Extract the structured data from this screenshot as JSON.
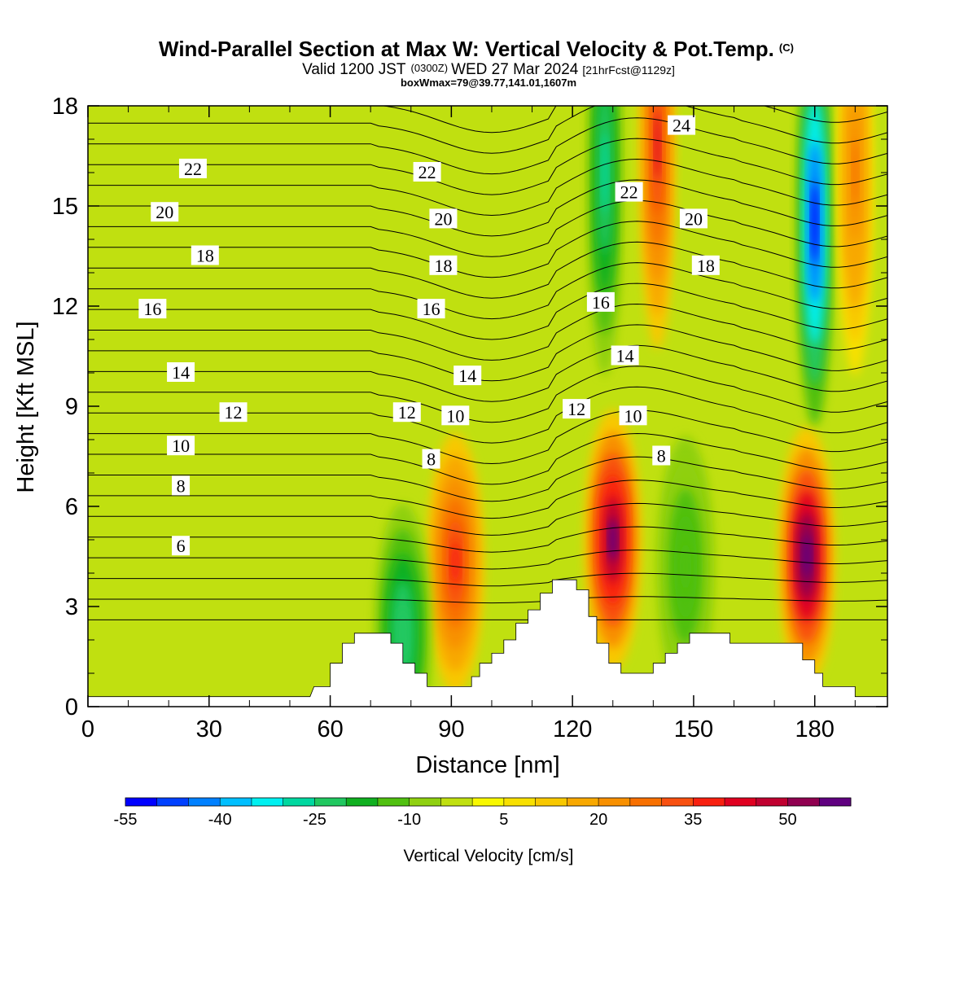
{
  "title": {
    "main": "Wind-Parallel Section at Max W: Vertical Velocity & Pot.Temp.",
    "copyright": "(C)",
    "valid_prefix": "Valid 1200 JST",
    "valid_zulu": "(0300Z)",
    "valid_date": "WED 27 Mar 2024",
    "forecast": "[21hrFcst@1129z]",
    "box_info": "boxWmax=79@39.77,141.01,1607m"
  },
  "chart_data": {
    "type": "heatmap",
    "xlabel": "Distance [nm]",
    "ylabel": "Height [Kft MSL]",
    "xlim": [
      0,
      198
    ],
    "ylim": [
      0,
      18
    ],
    "x_ticks": [
      0,
      30,
      60,
      90,
      120,
      150,
      180
    ],
    "y_ticks": [
      0,
      3,
      6,
      9,
      12,
      15,
      18
    ],
    "colorbar": {
      "label": "Vertical Velocity [cm/s]",
      "levels": [
        -55,
        -50,
        -45,
        -40,
        -35,
        -30,
        -25,
        -20,
        -15,
        -10,
        -5,
        0,
        5,
        10,
        15,
        20,
        25,
        30,
        35,
        40,
        45,
        50,
        55,
        60
      ],
      "tick_labels": [
        "-55",
        "-40",
        "-25",
        "-10",
        "5",
        "20",
        "35",
        "50"
      ],
      "colors": [
        "#0000ff",
        "#0040ff",
        "#0080ff",
        "#00bfff",
        "#00f0f0",
        "#00d8a0",
        "#20c860",
        "#10b020",
        "#50c010",
        "#8fd010",
        "#c0e010",
        "#f8f800",
        "#f8e000",
        "#f8c800",
        "#f8a800",
        "#f89000",
        "#f87000",
        "#f85010",
        "#f82010",
        "#e00020",
        "#c00030",
        "#900050",
        "#600080"
      ]
    },
    "vertical_velocity_features": [
      {
        "x": 91,
        "y": 4.3,
        "value": 35,
        "sign": "updraft"
      },
      {
        "x": 130,
        "y": 5.0,
        "value": 55,
        "sign": "updraft"
      },
      {
        "x": 178,
        "y": 4.5,
        "value": 60,
        "sign": "updraft"
      },
      {
        "x": 78,
        "y": 2.2,
        "value": -25,
        "sign": "downdraft"
      },
      {
        "x": 148,
        "y": 4.2,
        "value": -15,
        "sign": "downdraft"
      },
      {
        "x": 180,
        "y": 14.5,
        "value": -55,
        "sign": "downdraft"
      },
      {
        "x": 128,
        "y": 16.0,
        "value": -30,
        "sign": "downdraft"
      },
      {
        "x": 141,
        "y": 16.8,
        "value": 40,
        "sign": "updraft"
      },
      {
        "x": 190,
        "y": 16.0,
        "value": 25,
        "sign": "updraft"
      }
    ],
    "terrain_profile": [
      [
        0,
        0.3
      ],
      [
        55,
        0.3
      ],
      [
        56,
        0.6
      ],
      [
        60,
        0.6
      ],
      [
        60,
        1.3
      ],
      [
        63,
        1.3
      ],
      [
        63,
        1.9
      ],
      [
        66,
        1.9
      ],
      [
        66,
        2.2
      ],
      [
        75,
        2.2
      ],
      [
        75,
        1.9
      ],
      [
        78,
        1.9
      ],
      [
        78,
        1.3
      ],
      [
        81,
        1.3
      ],
      [
        81,
        1.0
      ],
      [
        84,
        1.0
      ],
      [
        84,
        0.6
      ],
      [
        95,
        0.6
      ],
      [
        95,
        0.9
      ],
      [
        97,
        0.9
      ],
      [
        97,
        1.3
      ],
      [
        100,
        1.3
      ],
      [
        100,
        1.6
      ],
      [
        103,
        1.6
      ],
      [
        103,
        2.0
      ],
      [
        106,
        2.0
      ],
      [
        106,
        2.5
      ],
      [
        109,
        2.5
      ],
      [
        109,
        2.9
      ],
      [
        112,
        2.9
      ],
      [
        112,
        3.4
      ],
      [
        115,
        3.4
      ],
      [
        115,
        3.8
      ],
      [
        121,
        3.8
      ],
      [
        121,
        3.5
      ],
      [
        124,
        3.5
      ],
      [
        124,
        2.7
      ],
      [
        126,
        2.7
      ],
      [
        126,
        1.9
      ],
      [
        129,
        1.9
      ],
      [
        129,
        1.3
      ],
      [
        132,
        1.3
      ],
      [
        132,
        1.0
      ],
      [
        140,
        1.0
      ],
      [
        140,
        1.3
      ],
      [
        143,
        1.3
      ],
      [
        143,
        1.6
      ],
      [
        146,
        1.6
      ],
      [
        146,
        1.9
      ],
      [
        149,
        1.9
      ],
      [
        149,
        2.2
      ],
      [
        159,
        2.2
      ],
      [
        159,
        1.9
      ],
      [
        177,
        1.9
      ],
      [
        177,
        1.4
      ],
      [
        180,
        1.4
      ],
      [
        180,
        1.0
      ],
      [
        182,
        1.0
      ],
      [
        182,
        0.6
      ],
      [
        190,
        0.6
      ],
      [
        190,
        0.3
      ],
      [
        198,
        0.3
      ]
    ],
    "potential_temperature_contours": {
      "unit": "C",
      "labels": [
        {
          "text": "24",
          "x": 147,
          "y": 17.4
        },
        {
          "text": "22",
          "x": 26,
          "y": 16.1
        },
        {
          "text": "22",
          "x": 84,
          "y": 16.0
        },
        {
          "text": "22",
          "x": 134,
          "y": 15.4
        },
        {
          "text": "20",
          "x": 19,
          "y": 14.8
        },
        {
          "text": "20",
          "x": 88,
          "y": 14.6
        },
        {
          "text": "20",
          "x": 150,
          "y": 14.6
        },
        {
          "text": "18",
          "x": 29,
          "y": 13.5
        },
        {
          "text": "18",
          "x": 88,
          "y": 13.2
        },
        {
          "text": "18",
          "x": 153,
          "y": 13.2
        },
        {
          "text": "16",
          "x": 16,
          "y": 11.9
        },
        {
          "text": "16",
          "x": 85,
          "y": 11.9
        },
        {
          "text": "16",
          "x": 127,
          "y": 12.1
        },
        {
          "text": "14",
          "x": 23,
          "y": 10.0
        },
        {
          "text": "14",
          "x": 94,
          "y": 9.9
        },
        {
          "text": "14",
          "x": 133,
          "y": 10.5
        },
        {
          "text": "12",
          "x": 36,
          "y": 8.8
        },
        {
          "text": "12",
          "x": 79,
          "y": 8.8
        },
        {
          "text": "12",
          "x": 121,
          "y": 8.9
        },
        {
          "text": "10",
          "x": 23,
          "y": 7.8
        },
        {
          "text": "10",
          "x": 91,
          "y": 8.7
        },
        {
          "text": "10",
          "x": 135,
          "y": 8.7
        },
        {
          "text": "8",
          "x": 23,
          "y": 6.6
        },
        {
          "text": "8",
          "x": 85,
          "y": 7.4
        },
        {
          "text": "8",
          "x": 142,
          "y": 7.5
        },
        {
          "text": "6",
          "x": 23,
          "y": 4.8
        }
      ]
    }
  }
}
